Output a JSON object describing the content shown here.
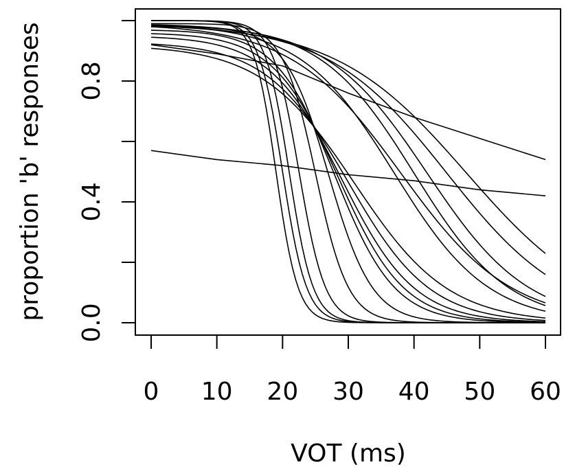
{
  "chart_data": {
    "type": "line",
    "title": "",
    "xlabel": "VOT (ms)",
    "ylabel": "proportion 'b' responses",
    "xlim": [
      0,
      60
    ],
    "ylim": [
      0,
      1
    ],
    "x_ticks": [
      0,
      10,
      20,
      30,
      40,
      50,
      60
    ],
    "x_tick_labels": [
      "0",
      "10",
      "20",
      "30",
      "40",
      "50",
      "60"
    ],
    "y_ticks": [
      0.0,
      0.2,
      0.4,
      0.6,
      0.8,
      1.0
    ],
    "y_tick_labels": [
      "0.0",
      "",
      "0.4",
      "",
      "0.8",
      ""
    ],
    "grid": false,
    "legend": "none",
    "x": [
      0,
      10,
      20,
      30,
      40,
      50,
      60
    ],
    "series": [
      {
        "logistic": {
          "mid": 19,
          "slope": 0.6,
          "top": 1.0
        },
        "values": [
          1.0,
          1.0,
          0.65,
          0.0,
          0.0,
          0.0,
          0.0
        ]
      },
      {
        "logistic": {
          "mid": 20,
          "slope": 0.55,
          "top": 1.0
        },
        "values": [
          1.0,
          1.0,
          0.5,
          0.0,
          0.0,
          0.0,
          0.0
        ]
      },
      {
        "logistic": {
          "mid": 21,
          "slope": 0.55,
          "top": 1.0
        },
        "values": [
          1.0,
          1.0,
          0.63,
          0.0,
          0.0,
          0.0,
          0.0
        ]
      },
      {
        "logistic": {
          "mid": 22.5,
          "slope": 0.5,
          "top": 1.0
        },
        "values": [
          1.0,
          1.0,
          0.68,
          0.01,
          0.0,
          0.0,
          0.0
        ]
      },
      {
        "logistic": {
          "mid": 25,
          "slope": 0.4,
          "top": 0.99
        },
        "values": [
          0.99,
          0.98,
          0.87,
          0.12,
          0.0,
          0.0,
          0.0
        ]
      },
      {
        "logistic": {
          "mid": 27,
          "slope": 0.3,
          "top": 0.98
        },
        "values": [
          0.98,
          0.97,
          0.88,
          0.28,
          0.02,
          0.0,
          0.0
        ]
      },
      {
        "logistic": {
          "mid": 28,
          "slope": 0.22,
          "top": 0.97
        },
        "values": [
          0.97,
          0.96,
          0.83,
          0.42,
          0.07,
          0.01,
          0.0
        ]
      },
      {
        "logistic": {
          "mid": 28.5,
          "slope": 0.2,
          "top": 0.96
        },
        "values": [
          0.96,
          0.93,
          0.81,
          0.45,
          0.09,
          0.01,
          0.0
        ]
      },
      {
        "logistic": {
          "mid": 29,
          "slope": 0.18,
          "top": 0.95
        },
        "values": [
          0.95,
          0.92,
          0.79,
          0.49,
          0.11,
          0.02,
          0.0
        ]
      },
      {
        "logistic": {
          "mid": 30,
          "slope": 0.16,
          "top": 0.93
        },
        "values": [
          0.93,
          0.89,
          0.77,
          0.46,
          0.15,
          0.04,
          0.01
        ]
      },
      {
        "logistic": {
          "mid": 31,
          "slope": 0.14,
          "top": 0.92
        },
        "values": [
          0.92,
          0.88,
          0.76,
          0.49,
          0.18,
          0.05,
          0.01
        ]
      },
      {
        "logistic": {
          "mid": 37,
          "slope": 0.14,
          "top": 0.99
        },
        "values": [
          0.99,
          0.98,
          0.92,
          0.72,
          0.4,
          0.15,
          0.04
        ]
      },
      {
        "logistic": {
          "mid": 38,
          "slope": 0.12,
          "top": 0.99
        },
        "values": [
          0.99,
          0.98,
          0.91,
          0.72,
          0.4,
          0.18,
          0.07
        ]
      },
      {
        "logistic": {
          "mid": 40,
          "slope": 0.14,
          "top": 0.99
        },
        "values": [
          0.99,
          0.99,
          0.93,
          0.85,
          0.51,
          0.24,
          0.1
        ]
      },
      {
        "logistic": {
          "mid": 42,
          "slope": 0.13,
          "top": 0.99
        },
        "values": [
          0.99,
          0.99,
          0.96,
          0.89,
          0.59,
          0.32,
          0.13
        ]
      },
      {
        "logistic": {
          "mid": 45,
          "slope": 0.11,
          "top": 0.99
        },
        "values": [
          0.99,
          0.98,
          0.95,
          0.88,
          0.64,
          0.39,
          0.16
        ]
      },
      {
        "logistic": {
          "mid": 48,
          "slope": 0.1,
          "top": 0.99
        },
        "values": [
          0.99,
          0.98,
          0.97,
          0.89,
          0.69,
          0.43,
          0.22
        ]
      },
      {
        "linear": true,
        "values": [
          0.92,
          0.89,
          0.85,
          0.76,
          0.68,
          0.61,
          0.54
        ]
      },
      {
        "linear": true,
        "values": [
          0.57,
          0.54,
          0.52,
          0.49,
          0.47,
          0.44,
          0.42
        ]
      }
    ]
  }
}
